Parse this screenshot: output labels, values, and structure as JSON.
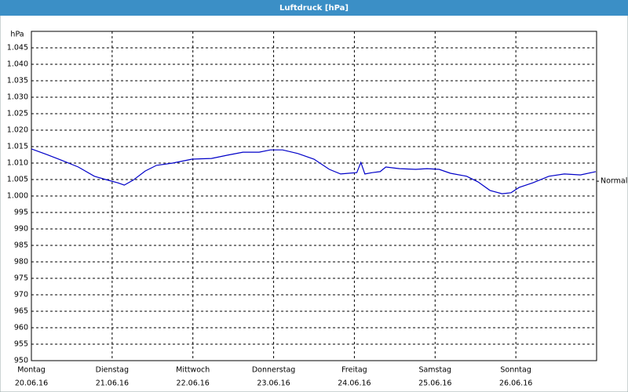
{
  "chart_data": {
    "type": "line",
    "title": "Luftdruck [hPa]",
    "y_unit": "hPa",
    "color": "#0000c8",
    "x": [
      0,
      0.19,
      0.39,
      0.58,
      0.78,
      0.92,
      1.07,
      1.15,
      1.26,
      1.41,
      1.55,
      1.75,
      1.99,
      2.23,
      2.43,
      2.62,
      2.82,
      2.96,
      3.11,
      3.3,
      3.5,
      3.69,
      3.83,
      3.93,
      4.03,
      4.08,
      4.13,
      4.22,
      4.32,
      4.39,
      4.56,
      4.76,
      4.9,
      5.05,
      5.19,
      5.39,
      5.53,
      5.68,
      5.83,
      5.94,
      6.04,
      6.21,
      6.41,
      6.6,
      6.8,
      6.99
    ],
    "values": [
      1014.3,
      1012.6,
      1010.7,
      1008.8,
      1006,
      1005,
      1004,
      1003.3,
      1004.8,
      1007.6,
      1009.3,
      1010,
      1011.2,
      1011.4,
      1012.4,
      1013.3,
      1013.3,
      1014,
      1014,
      1012.9,
      1011.2,
      1008.1,
      1006.7,
      1006.9,
      1007.1,
      1010.2,
      1006.7,
      1007.1,
      1007.4,
      1008.8,
      1008.3,
      1008.1,
      1008.3,
      1008.1,
      1006.9,
      1006,
      1004.3,
      1001.7,
      1000.7,
      1001,
      1002.6,
      1004,
      1006,
      1006.7,
      1006.4,
      1007.4
    ],
    "xlim": [
      0,
      7
    ],
    "xticks": [
      {
        "value": 0,
        "label": "Montag"
      },
      {
        "value": 1,
        "label": "Dienstag"
      },
      {
        "value": 2,
        "label": "Mittwoch"
      },
      {
        "value": 3,
        "label": "Donnerstag"
      },
      {
        "value": 4,
        "label": "Freitag"
      },
      {
        "value": 5,
        "label": "Samstag"
      },
      {
        "value": 6,
        "label": "Sonntag"
      }
    ],
    "xtick_dates": [
      "20.06.16",
      "21.06.16",
      "22.06.16",
      "23.06.16",
      "24.06.16",
      "25.06.16",
      "26.06.16"
    ],
    "ylim": [
      950,
      1050
    ],
    "yticks": [
      950,
      955,
      960,
      965,
      970,
      975,
      980,
      985,
      990,
      995,
      {
        "value": 1000,
        "label": "1.000"
      },
      {
        "value": 1005,
        "label": "1.005"
      },
      {
        "value": 1010,
        "label": "1.010"
      },
      {
        "value": 1015,
        "label": "1.015"
      },
      {
        "value": 1020,
        "label": "1.020"
      },
      {
        "value": 1025,
        "label": "1.025"
      },
      {
        "value": 1030,
        "label": "1.030"
      },
      {
        "value": 1035,
        "label": "1.035"
      },
      {
        "value": 1040,
        "label": "1.040"
      },
      {
        "value": 1045,
        "label": "1.045"
      }
    ],
    "reference": {
      "label": "Normal",
      "value": 1004.5
    },
    "grid": true
  }
}
